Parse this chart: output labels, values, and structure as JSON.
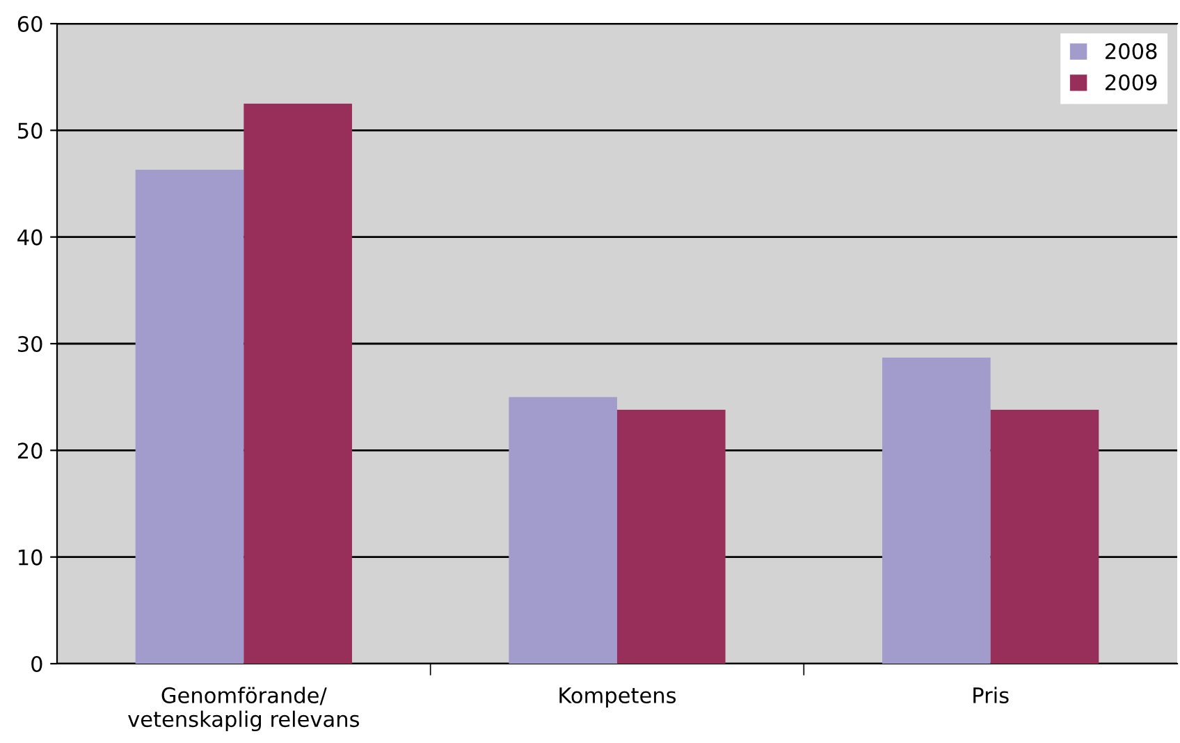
{
  "chart_data": {
    "type": "bar",
    "categories": [
      "Genomförande/\nvetenskaplig relevans",
      "Kompetens",
      "Pris"
    ],
    "series": [
      {
        "name": "2008",
        "color": "#a29ccc",
        "values": [
          46.3,
          25.0,
          28.7
        ]
      },
      {
        "name": "2009",
        "color": "#982e5a",
        "values": [
          52.5,
          23.8,
          23.8
        ]
      }
    ],
    "ylim": [
      0,
      60
    ],
    "yticks": [
      0,
      10,
      20,
      30,
      40,
      50,
      60
    ],
    "grid": "y",
    "legend": "top right"
  }
}
